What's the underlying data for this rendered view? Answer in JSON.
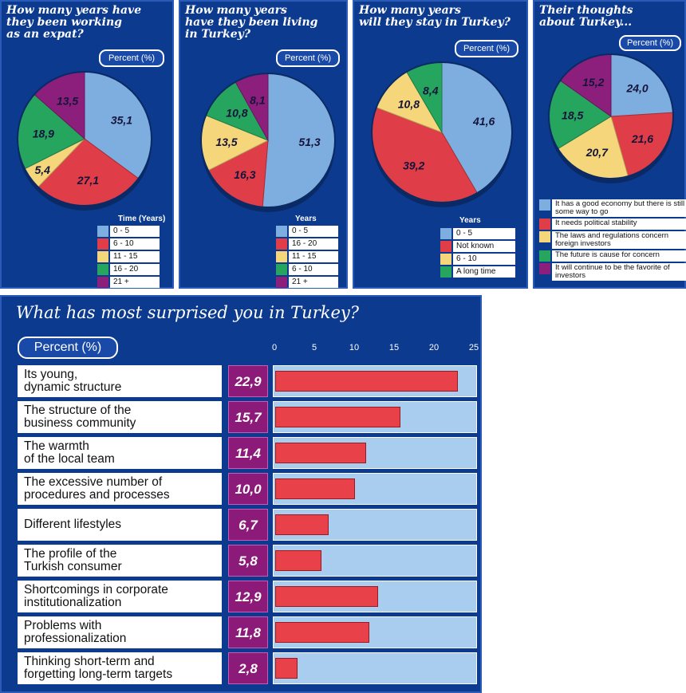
{
  "chart_data": [
    {
      "type": "pie",
      "title": "How many years have\nthey been working\nas an expat?",
      "unit_label": "Percent (%)",
      "legend_title": "Time (Years)",
      "categories": [
        "0 - 5",
        "6 - 10",
        "11 - 15",
        "16 - 20",
        "21 +"
      ],
      "values": [
        35.1,
        27.1,
        5.4,
        18.9,
        13.5
      ],
      "labels": [
        "35,1",
        "27,1",
        "5,4",
        "18,9",
        "13,5"
      ],
      "colors": [
        "#7eaee0",
        "#df3d47",
        "#f5d67a",
        "#26a55e",
        "#8c1f7c"
      ]
    },
    {
      "type": "pie",
      "title": "How many years\nhave they been living\nin Turkey?",
      "unit_label": "Percent (%)",
      "legend_title": "Years",
      "categories": [
        "0 - 5",
        "16 - 20",
        "11 - 15",
        "6 - 10",
        "21 +"
      ],
      "values": [
        51.3,
        16.3,
        13.5,
        10.8,
        8.1
      ],
      "labels": [
        "51,3",
        "16,3",
        "13,5",
        "10,8",
        "8,1"
      ],
      "colors": [
        "#7eaee0",
        "#df3d47",
        "#f5d67a",
        "#26a55e",
        "#8c1f7c"
      ]
    },
    {
      "type": "pie",
      "title": "How many years\nwill they stay in Turkey?",
      "unit_label": "Percent (%)",
      "legend_title": "Years",
      "categories": [
        "0 - 5",
        "Not known",
        "6 - 10",
        "A long time"
      ],
      "values": [
        41.6,
        39.2,
        10.8,
        8.4
      ],
      "labels": [
        "41,6",
        "39,2",
        "10,8",
        "8,4"
      ],
      "colors": [
        "#7eaee0",
        "#df3d47",
        "#f5d67a",
        "#26a55e"
      ]
    },
    {
      "type": "pie",
      "title": "Their thoughts\nabout Turkey...",
      "unit_label": "Percent (%)",
      "legend_title": "",
      "categories": [
        "It has a good economy but there is still some way to go",
        "It needs political stability",
        "The laws and regulations concern foreign investors",
        "The future is cause for concern",
        "It will continue to be the favorite of investors"
      ],
      "values": [
        24.0,
        21.6,
        20.7,
        18.5,
        15.2
      ],
      "labels": [
        "24,0",
        "21,6",
        "20,7",
        "18,5",
        "15,2"
      ],
      "colors": [
        "#7eaee0",
        "#df3d47",
        "#f5d67a",
        "#26a55e",
        "#8c1f7c"
      ]
    },
    {
      "type": "bar",
      "title": "What has most surprised you in Turkey?",
      "unit_label": "Percent (%)",
      "xlim": [
        0,
        25
      ],
      "ticks": [
        "0",
        "5",
        "10",
        "15",
        "20",
        "25"
      ],
      "categories": [
        "Its young,\ndynamic structure",
        "The structure of the\nbusiness community",
        "The warmth\nof the local team",
        "The excessive number of\nprocedures and processes",
        "Different lifestyles",
        "The profile of the\nTurkish consumer",
        "Shortcomings in corporate\ninstitutionalization",
        "Problems with\nprofessionalization",
        "Thinking short-term and\nforgetting long-term targets"
      ],
      "values": [
        22.9,
        15.7,
        11.4,
        10.0,
        6.7,
        5.8,
        12.9,
        11.8,
        2.8
      ],
      "labels": [
        "22,9",
        "15,7",
        "11,4",
        "10,0",
        "6,7",
        "5,8",
        "12,9",
        "11,8",
        "2,8"
      ],
      "colors": {
        "bar": "#e9414a",
        "track": "#a8cdef",
        "value_box": "#8b1a78"
      }
    }
  ]
}
